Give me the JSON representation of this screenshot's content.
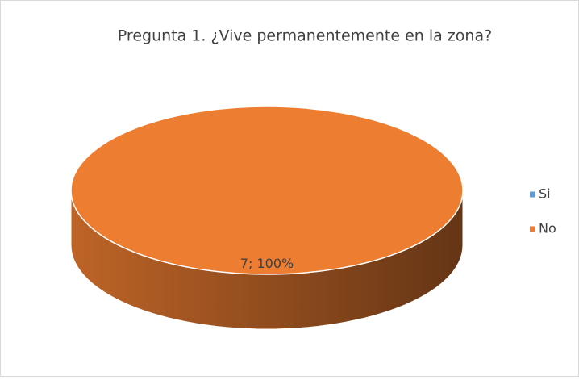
{
  "chart_data": {
    "type": "pie",
    "title": "Pregunta 1. ¿Vive permanentemente en la zona?",
    "categories": [
      "Si",
      "No"
    ],
    "values": [
      0,
      7
    ],
    "value_labels": [
      null,
      "7; 100%"
    ],
    "colors": [
      "#5b9bd5",
      "#ed7d31"
    ],
    "legend": "right",
    "3d": true
  }
}
